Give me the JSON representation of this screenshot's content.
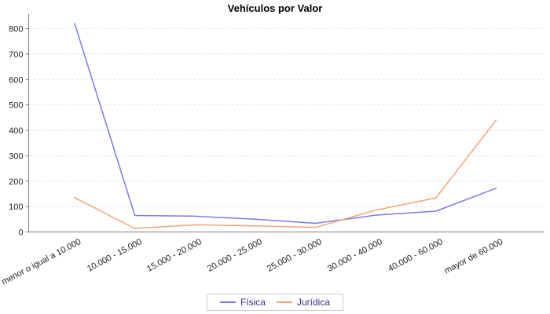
{
  "title": "Vehículos por Valor",
  "chart_data": {
    "type": "line",
    "title": "Vehículos por Valor",
    "categories": [
      "menor o igual a 10.000",
      "10.000 - 15.000",
      "15.000 - 20.000",
      "20.000 - 25.000",
      "25.000 - 30.000",
      "30.000 - 40.000",
      "40.000 - 60.000",
      "mayor de 60.000"
    ],
    "series": [
      {
        "name": "Física",
        "color": "#7a7ae6",
        "values": [
          820,
          65,
          62,
          50,
          34,
          66,
          82,
          172
        ]
      },
      {
        "name": "Jurídica",
        "color": "#f5a273",
        "values": [
          135,
          14,
          28,
          24,
          18,
          86,
          134,
          440
        ]
      }
    ],
    "y_axis": {
      "min": 0,
      "max": 800,
      "tick_interval": 100,
      "tick_labels": [
        "0",
        "100",
        "200",
        "300",
        "400",
        "500",
        "600",
        "700",
        "800"
      ]
    },
    "x_axis": {
      "label": "",
      "tick_rotation_deg": -28
    },
    "grid": "horizontal-dashed",
    "legend_position": "bottom"
  },
  "colors": {
    "series_fisica": "#7a7ae6",
    "series_juridica": "#f5a273",
    "gridline": "#e0e0e0",
    "axis": "#808080",
    "tick_text": "#222222",
    "legend_text": "#3b2f86",
    "legend_border": "#cccccc",
    "title_text": "#000000",
    "background": "#ffffff"
  }
}
